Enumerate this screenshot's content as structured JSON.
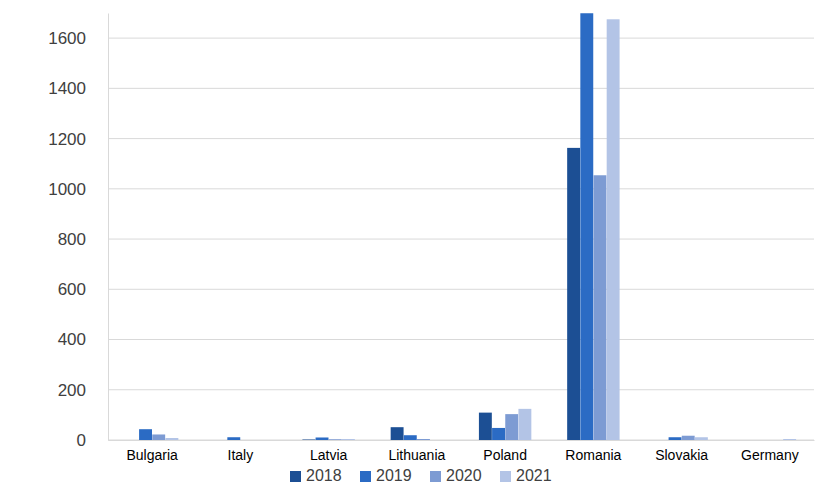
{
  "chart_data": {
    "type": "bar",
    "categories": [
      "Bulgaria",
      "Italy",
      "Latvia",
      "Lithuania",
      "Poland",
      "Romania",
      "Slovakia",
      "Germany"
    ],
    "series": [
      {
        "name": "2018",
        "color": "#1c4f94",
        "values": [
          0,
          0,
          2,
          51,
          109,
          1163,
          0,
          0
        ]
      },
      {
        "name": "2019",
        "color": "#2b6bc4",
        "values": [
          43,
          11,
          10,
          19,
          48,
          1699,
          11,
          0
        ]
      },
      {
        "name": "2020",
        "color": "#7d9bd3",
        "values": [
          22,
          0,
          3,
          4,
          103,
          1054,
          17,
          0
        ]
      },
      {
        "name": "2021",
        "color": "#b3c4e6",
        "values": [
          8,
          0,
          4,
          0,
          124,
          1675,
          11,
          4
        ]
      }
    ],
    "ylim": [
      0,
      1700
    ],
    "yticks": [
      0,
      200,
      400,
      600,
      800,
      1000,
      1200,
      1400,
      1600
    ],
    "grid": true,
    "legend": "bottom"
  }
}
